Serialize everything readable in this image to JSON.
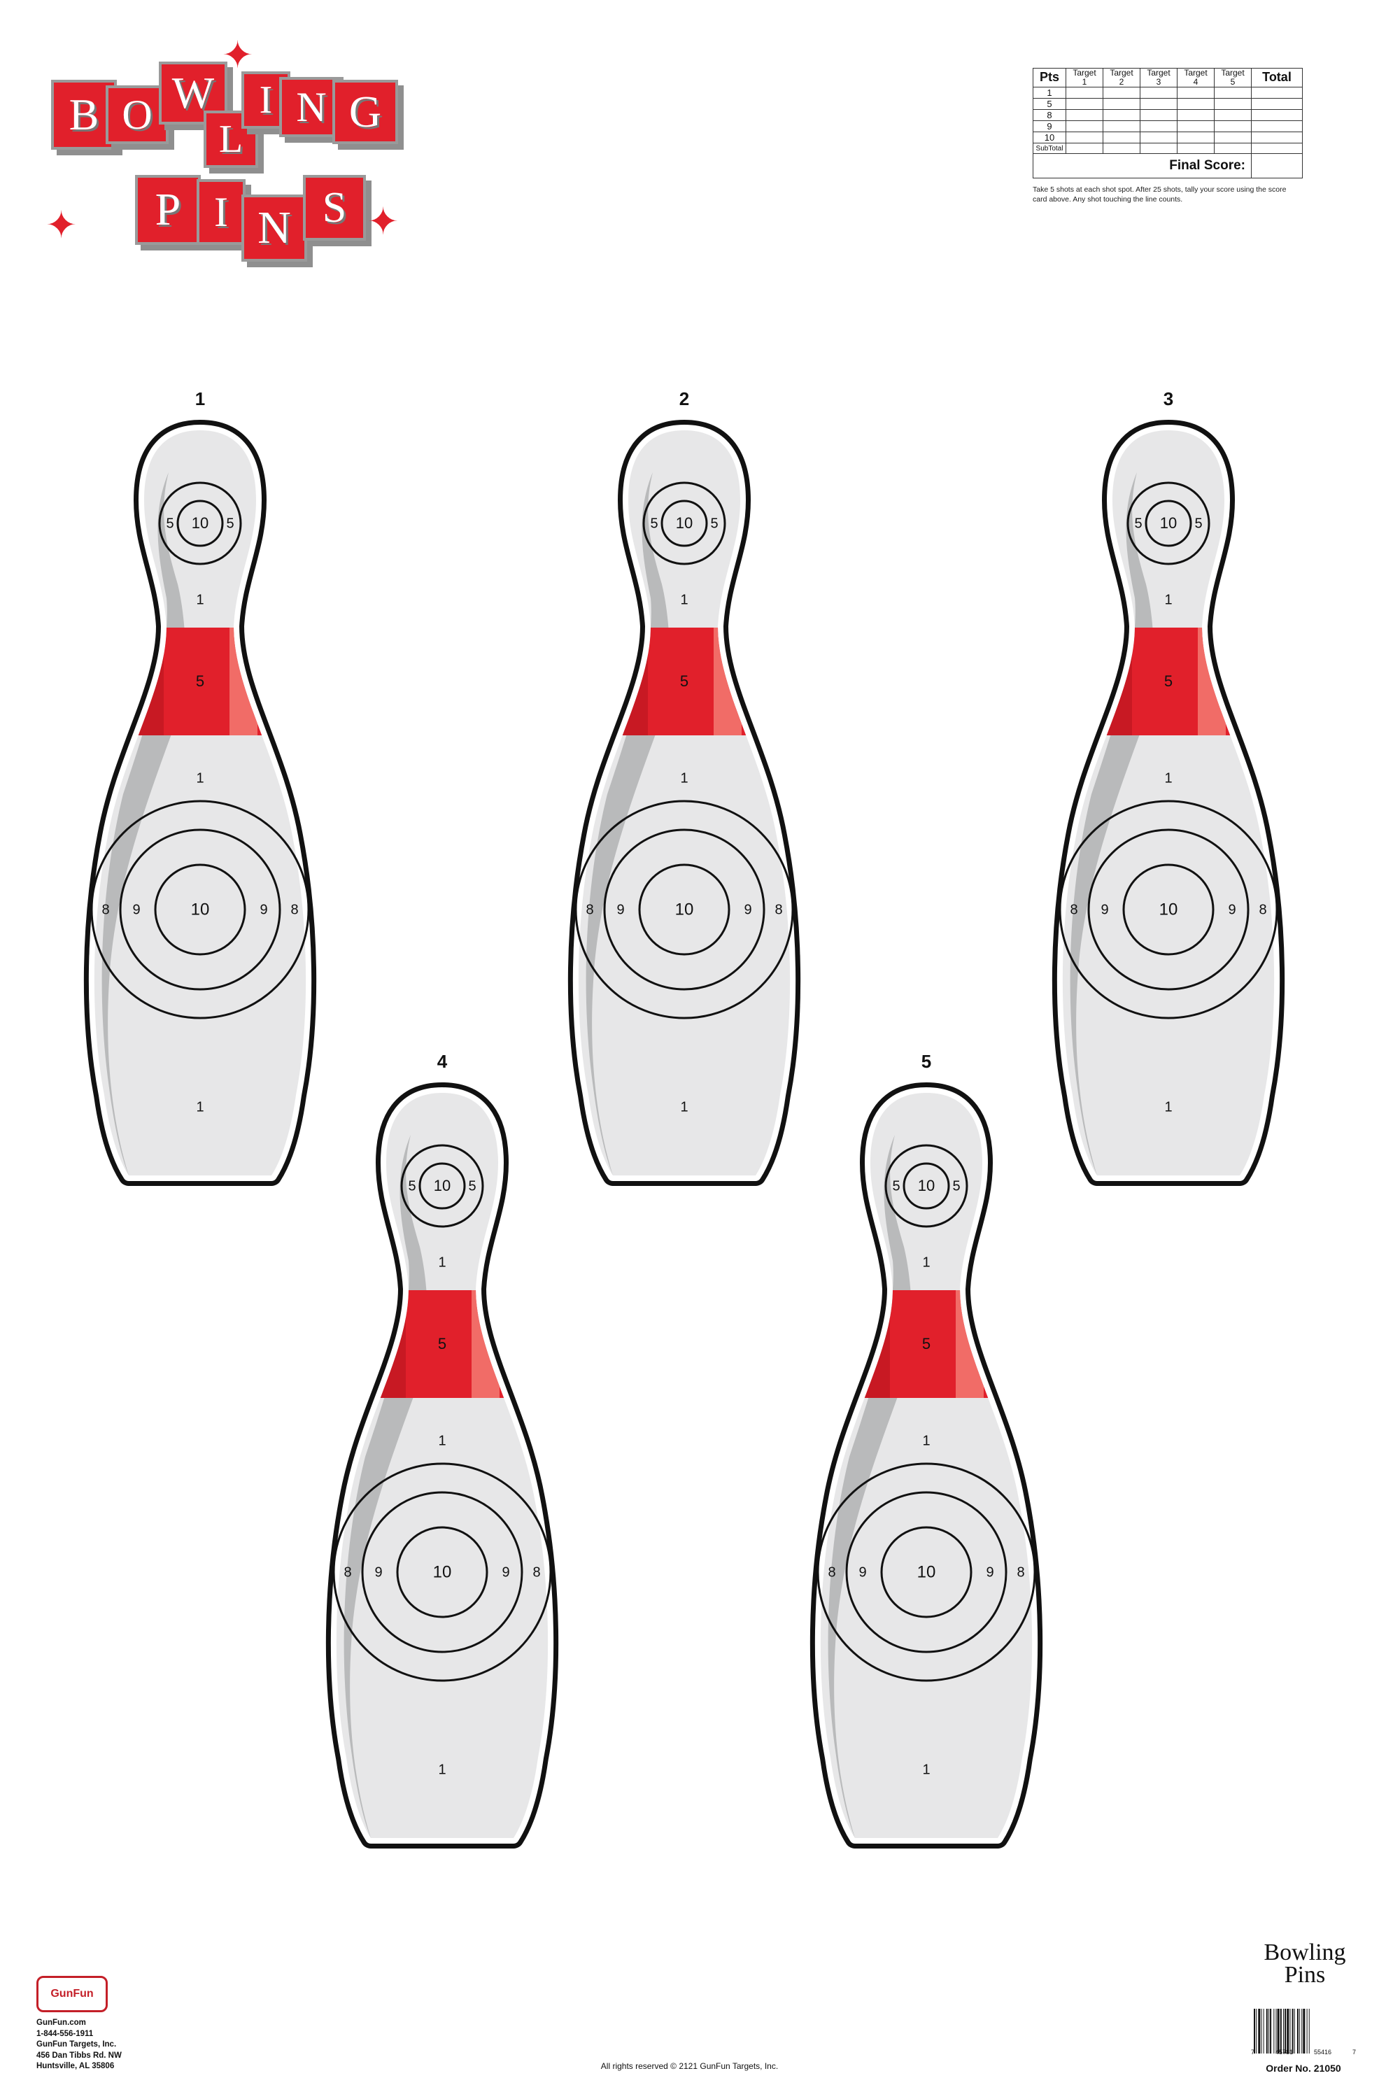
{
  "logo": {
    "word1": [
      "B",
      "O",
      "W",
      "L",
      "I",
      "N",
      "G"
    ],
    "word2": [
      "P",
      "I",
      "N",
      "S"
    ],
    "brand_color": "#e1202b"
  },
  "scorecard": {
    "pts_header": "Pts",
    "target_headers": [
      "Target\n1",
      "Target\n2",
      "Target\n3",
      "Target\n4",
      "Target\n5"
    ],
    "total_header": "Total",
    "rows": [
      "1",
      "5",
      "8",
      "9",
      "10",
      "SubTotal"
    ],
    "final_label": "Final Score:",
    "note": "Take 5 shots at each shot spot. After 25 shots, tally your score using the score card above. Any shot touching the line counts."
  },
  "targets": [
    {
      "number": "1"
    },
    {
      "number": "2"
    },
    {
      "number": "3"
    },
    {
      "number": "4"
    },
    {
      "number": "5"
    }
  ],
  "target_labels": {
    "head_center": "10",
    "head_side": "5",
    "neck": "1",
    "band": "5",
    "shoulder": "1",
    "ring_outer": "8",
    "ring_middle": "9",
    "ring_center": "10",
    "base": "1"
  },
  "colors": {
    "band_red": "#e1202b",
    "pin_body": "#e7e7e8",
    "pin_shadow": "#b9babb",
    "outline": "#111111"
  },
  "footer": {
    "brand_mark": "GunFun",
    "website": "GunFun.com",
    "phone": "1-844-556-1911",
    "company": "GunFun Targets, Inc.",
    "street": "456 Dan Tibbs Rd. NW",
    "city": "Huntsville, AL 35806",
    "copyright": "All rights reserved © 2121  GunFun Targets, Inc.",
    "title_line1": "Bowling",
    "title_line2": "Pins",
    "barcode_digits": [
      "7",
      "45781",
      "55416",
      "7"
    ],
    "order_no": "Order No. 21050"
  }
}
